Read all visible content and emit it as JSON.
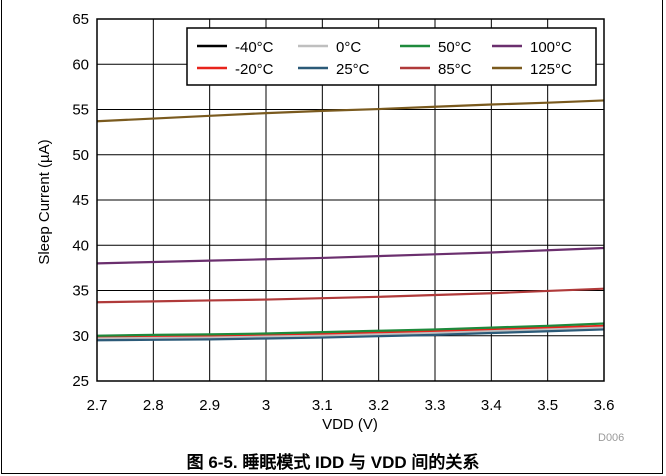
{
  "chart_data": {
    "type": "line",
    "title": "",
    "xlabel": "VDD (V)",
    "ylabel": "Sleep Current (µA)",
    "xlim": [
      2.7,
      3.6
    ],
    "ylim": [
      25,
      65
    ],
    "x_ticks": [
      "2.7",
      "2.8",
      "2.9",
      "3",
      "3.1",
      "3.2",
      "3.3",
      "3.4",
      "3.5",
      "3.6"
    ],
    "y_ticks": [
      "25",
      "30",
      "35",
      "40",
      "45",
      "50",
      "55",
      "60",
      "65"
    ],
    "grid": true,
    "legend_position": "top-right",
    "x": [
      2.7,
      2.8,
      2.9,
      3.0,
      3.1,
      3.2,
      3.3,
      3.4,
      3.5,
      3.6
    ],
    "series": [
      {
        "name": "-40°C",
        "color": "#000000",
        "values": [
          29.8,
          29.85,
          29.9,
          30.0,
          30.1,
          30.25,
          30.4,
          30.6,
          30.8,
          31.0
        ]
      },
      {
        "name": "-20°C",
        "color": "#e8241c",
        "values": [
          29.85,
          29.9,
          29.95,
          30.05,
          30.2,
          30.35,
          30.5,
          30.7,
          30.9,
          31.1
        ]
      },
      {
        "name": "0°C",
        "color": "#bfbfbf",
        "values": [
          29.7,
          29.75,
          29.8,
          29.9,
          30.0,
          30.15,
          30.3,
          30.5,
          30.7,
          30.9
        ]
      },
      {
        "name": "25°C",
        "color": "#2b5a78",
        "values": [
          29.5,
          29.55,
          29.6,
          29.7,
          29.8,
          29.95,
          30.1,
          30.3,
          30.5,
          30.7
        ]
      },
      {
        "name": "50°C",
        "color": "#1e8a3c",
        "values": [
          30.0,
          30.1,
          30.15,
          30.25,
          30.4,
          30.55,
          30.7,
          30.9,
          31.1,
          31.35
        ]
      },
      {
        "name": "85°C",
        "color": "#b03a3a",
        "values": [
          33.7,
          33.8,
          33.9,
          34.0,
          34.15,
          34.3,
          34.5,
          34.7,
          34.95,
          35.2
        ]
      },
      {
        "name": "100°C",
        "color": "#6b2f6e",
        "values": [
          38.0,
          38.15,
          38.3,
          38.45,
          38.6,
          38.8,
          39.0,
          39.2,
          39.45,
          39.7
        ]
      },
      {
        "name": "125°C",
        "color": "#7a5a1e",
        "values": [
          53.7,
          54.0,
          54.3,
          54.6,
          54.85,
          55.05,
          55.3,
          55.55,
          55.75,
          56.0
        ]
      }
    ],
    "legend_order": [
      "-40°C",
      "0°C",
      "50°C",
      "100°C",
      "-20°C",
      "25°C",
      "85°C",
      "125°C"
    ]
  },
  "figure": {
    "caption": "图 6-5. 睡眠模式 IDD 与 VDD 间的关系",
    "figure_id": "D006"
  }
}
